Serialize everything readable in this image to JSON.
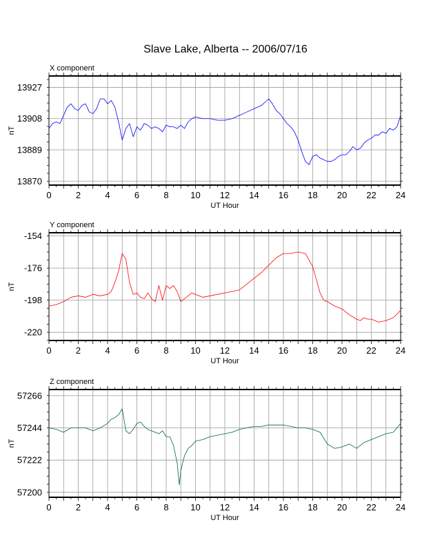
{
  "title": "Slave Lake, Alberta -- 2006/07/16",
  "chart_data": [
    {
      "type": "line",
      "panel_label": "X component",
      "xlabel": "UT Hour",
      "ylabel": "nT",
      "xlim": [
        0,
        24
      ],
      "xticks": [
        0,
        2,
        4,
        6,
        8,
        10,
        12,
        14,
        16,
        18,
        20,
        22,
        24
      ],
      "ylim": [
        13867.6,
        13933.9
      ],
      "yticks": [
        13870,
        13889,
        13908,
        13927
      ],
      "grid": true,
      "series": [
        {
          "color": "#0000ff",
          "x": [
            0,
            0.25,
            0.5,
            0.75,
            1.0,
            1.25,
            1.5,
            1.75,
            2.0,
            2.25,
            2.5,
            2.75,
            3.0,
            3.25,
            3.5,
            3.75,
            4.0,
            4.25,
            4.5,
            4.75,
            5.0,
            5.25,
            5.5,
            5.75,
            6.0,
            6.25,
            6.5,
            6.75,
            7.0,
            7.25,
            7.5,
            7.75,
            8.0,
            8.25,
            8.5,
            8.75,
            9.0,
            9.25,
            9.5,
            9.75,
            10.0,
            10.5,
            11.0,
            11.5,
            12.0,
            12.5,
            13.0,
            13.5,
            14.0,
            14.5,
            15.0,
            15.25,
            15.5,
            15.75,
            16.0,
            16.25,
            16.5,
            16.75,
            17.0,
            17.25,
            17.5,
            17.75,
            18.0,
            18.25,
            18.5,
            18.75,
            19.0,
            19.25,
            19.5,
            19.75,
            20.0,
            20.25,
            20.5,
            20.75,
            21.0,
            21.25,
            21.5,
            21.75,
            22.0,
            22.25,
            22.5,
            22.75,
            23.0,
            23.25,
            23.5,
            23.75,
            24.0
          ],
          "y": [
            13902,
            13905,
            13906,
            13905,
            13910,
            13915,
            13917,
            13914,
            13913,
            13916,
            13917,
            13912,
            13911,
            13914,
            13920,
            13920,
            13917,
            13919,
            13915,
            13906,
            13895,
            13902,
            13905,
            13897,
            13903,
            13901,
            13905,
            13904,
            13902,
            13903,
            13902,
            13900,
            13904,
            13903,
            13903,
            13902,
            13904,
            13902,
            13906,
            13908,
            13909,
            13908,
            13908,
            13907,
            13907,
            13908,
            13910,
            13912,
            13914,
            13916,
            13920,
            13917,
            13913,
            13911,
            13908,
            13905,
            13903,
            13900,
            13895,
            13888,
            13882,
            13880,
            13885,
            13886,
            13884,
            13883,
            13882,
            13882,
            13883,
            13885,
            13886,
            13886,
            13888,
            13891,
            13889,
            13890,
            13893,
            13895,
            13896,
            13898,
            13898,
            13900,
            13899,
            13902,
            13901,
            13903,
            13910
          ]
        }
      ]
    },
    {
      "type": "line",
      "panel_label": "Y component",
      "xlabel": "UT Hour",
      "ylabel": "nT",
      "xlim": [
        0,
        24
      ],
      "xticks": [
        0,
        2,
        4,
        6,
        8,
        10,
        12,
        14,
        16,
        18,
        20,
        22,
        24
      ],
      "ylim": [
        -225.6,
        -151.8
      ],
      "yticks": [
        -220,
        -198,
        -176,
        -154
      ],
      "grid": true,
      "series": [
        {
          "color": "#ff0000",
          "x": [
            0,
            0.5,
            1.0,
            1.5,
            2.0,
            2.5,
            3.0,
            3.5,
            4.0,
            4.25,
            4.5,
            4.75,
            5.0,
            5.25,
            5.5,
            5.75,
            6.0,
            6.25,
            6.5,
            6.75,
            7.0,
            7.25,
            7.5,
            7.75,
            8.0,
            8.25,
            8.5,
            8.75,
            9.0,
            9.25,
            9.5,
            9.75,
            10.0,
            10.5,
            11.0,
            11.5,
            12.0,
            12.5,
            13.0,
            13.5,
            14.0,
            14.5,
            15.0,
            15.5,
            16.0,
            16.5,
            17.0,
            17.5,
            18.0,
            18.25,
            18.5,
            18.75,
            19.0,
            19.5,
            20.0,
            20.5,
            21.0,
            21.25,
            21.5,
            21.75,
            22.0,
            22.5,
            23.0,
            23.5,
            24.0
          ],
          "y": [
            -202,
            -201,
            -199,
            -196,
            -195,
            -196,
            -194,
            -195,
            -194,
            -192,
            -186,
            -178,
            -166,
            -170,
            -186,
            -194,
            -193,
            -196,
            -197,
            -193,
            -197,
            -199,
            -188,
            -198,
            -188,
            -190,
            -188,
            -192,
            -199,
            -197,
            -195,
            -193,
            -194,
            -196,
            -195,
            -194,
            -193,
            -192,
            -191,
            -187,
            -183,
            -179,
            -174,
            -169,
            -166,
            -166,
            -165,
            -166,
            -175,
            -184,
            -193,
            -198,
            -199,
            -202,
            -204,
            -208,
            -211,
            -212,
            -210,
            -211,
            -211,
            -213,
            -212,
            -210,
            -205
          ]
        }
      ]
    },
    {
      "type": "line",
      "panel_label": "Z component",
      "xlabel": "UT Hour",
      "ylabel": "nT",
      "xlim": [
        0,
        24
      ],
      "xticks": [
        0,
        2,
        4,
        6,
        8,
        10,
        12,
        14,
        16,
        18,
        20,
        22,
        24
      ],
      "ylim": [
        57196.6,
        57270.2
      ],
      "yticks": [
        57200,
        57222,
        57244,
        57266
      ],
      "grid": true,
      "series": [
        {
          "color": "#006633",
          "x": [
            0,
            0.5,
            1.0,
            1.5,
            2.0,
            2.5,
            3.0,
            3.5,
            4.0,
            4.25,
            4.5,
            4.75,
            5.0,
            5.25,
            5.5,
            5.75,
            6.0,
            6.25,
            6.5,
            6.75,
            7.0,
            7.25,
            7.5,
            7.75,
            8.0,
            8.25,
            8.5,
            8.75,
            8.9,
            9.0,
            9.25,
            9.5,
            9.75,
            10.0,
            10.5,
            11.0,
            11.5,
            12.0,
            12.5,
            13.0,
            13.5,
            14.0,
            14.5,
            15.0,
            15.5,
            16.0,
            16.5,
            17.0,
            17.5,
            18.0,
            18.5,
            19.0,
            19.5,
            20.0,
            20.5,
            21.0,
            21.5,
            22.0,
            22.5,
            23.0,
            23.5,
            24.0
          ],
          "y": [
            57244,
            57243,
            57241,
            57244,
            57244,
            57244,
            57242,
            57244,
            57247,
            57250,
            57251,
            57253,
            57257,
            57242,
            57240,
            57243,
            57247,
            57248,
            57245,
            57243,
            57242,
            57241,
            57240,
            57242,
            57238,
            57238,
            57232,
            57220,
            57205,
            57215,
            57225,
            57230,
            57232,
            57235,
            57236,
            57238,
            57239,
            57240,
            57241,
            57243,
            57244,
            57245,
            57245,
            57246,
            57246,
            57246,
            57245,
            57244,
            57244,
            57243,
            57241,
            57233,
            57230,
            57231,
            57233,
            57230,
            57234,
            57236,
            57238,
            57240,
            57241,
            57247
          ]
        }
      ]
    }
  ]
}
